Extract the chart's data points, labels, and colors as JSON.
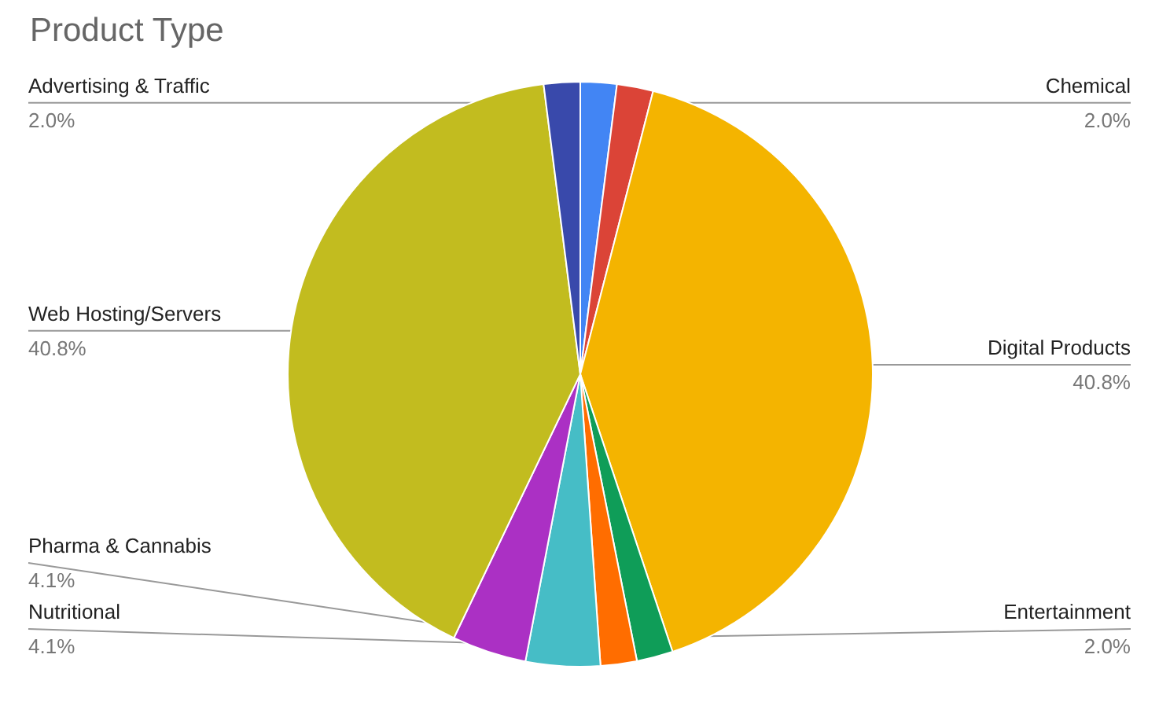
{
  "chart_data": {
    "type": "pie",
    "title": "Product Type",
    "legend": false,
    "categories": [
      "Chemical",
      null,
      "Digital Products",
      "Entertainment",
      null,
      "Nutritional",
      "Pharma & Cannabis",
      "Web Hosting/Servers",
      "Advertising & Traffic"
    ],
    "values": [
      2.0,
      2.0,
      40.8,
      2.0,
      2.0,
      4.1,
      4.1,
      40.8,
      2.0
    ],
    "value_labels": [
      "2.0%",
      null,
      "40.8%",
      "2.0%",
      null,
      "4.1%",
      "4.1%",
      "40.8%",
      "2.0%"
    ],
    "colors": [
      "#4285f4",
      "#db4437",
      "#f4b400",
      "#0f9d58",
      "#ff6d00",
      "#46bdc6",
      "#ab30c4",
      "#c2bc1f",
      "#3949ab"
    ]
  }
}
